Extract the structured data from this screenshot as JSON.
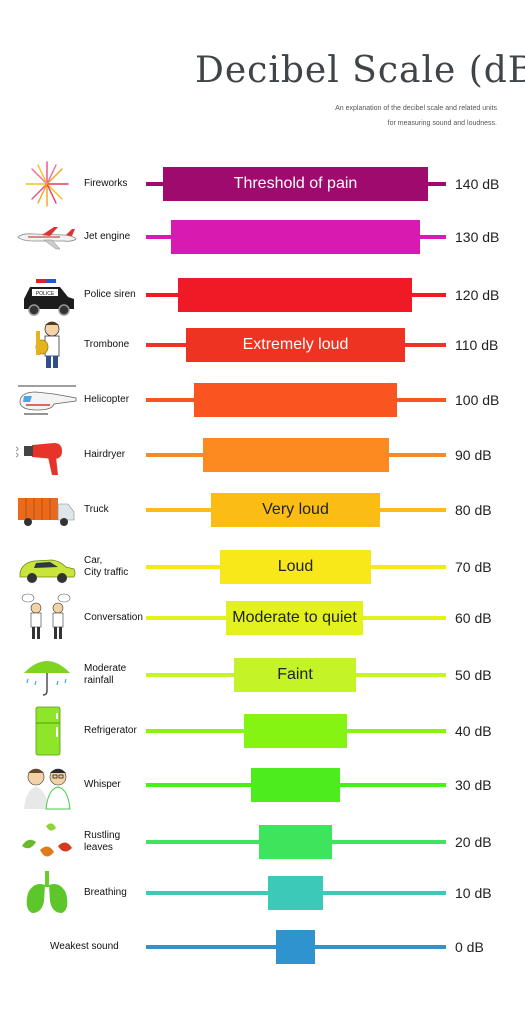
{
  "header": {
    "title": "Decibel Scale (dB)",
    "subtitle_line1": "An explanation of the decibel scale and related units",
    "subtitle_line2": "for measuring sound and loudness."
  },
  "rows": [
    {
      "source": "Fireworks",
      "level": "140 dB",
      "zone": "Threshold of pain",
      "color": "#9e0a6d",
      "text_color": "#ffffff",
      "icon": "fireworks-icon"
    },
    {
      "source": "Jet engine",
      "level": "130 dB",
      "zone": "",
      "color": "#d81ab0",
      "text_color": "#ffffff",
      "icon": "jet-icon"
    },
    {
      "source": "Police siren",
      "level": "120 dB",
      "zone": "",
      "color": "#ef1a26",
      "text_color": "#ffffff",
      "icon": "police-car-icon"
    },
    {
      "source": "Trombone",
      "level": "110 dB",
      "zone": "Extremely loud",
      "color": "#ee3322",
      "text_color": "#ffffff",
      "icon": "trombone-player-icon"
    },
    {
      "source": "Helicopter",
      "level": "100 dB",
      "zone": "",
      "color": "#fa5421",
      "text_color": "#ffffff",
      "icon": "helicopter-icon"
    },
    {
      "source": "Hairdryer",
      "level": "90 dB",
      "zone": "",
      "color": "#fd8a20",
      "text_color": "#ffffff",
      "icon": "hairdryer-icon"
    },
    {
      "source": "Truck",
      "level": "80 dB",
      "zone": "Very loud",
      "color": "#fbbd14",
      "text_color": "#222222",
      "icon": "truck-icon"
    },
    {
      "source": "Car,\nCity traffic",
      "level": "70 dB",
      "zone": "Loud",
      "color": "#f8e81a",
      "text_color": "#222222",
      "icon": "car-icon"
    },
    {
      "source": "Conversation",
      "level": "60 dB",
      "zone": "Moderate to quiet",
      "color": "#e3f21c",
      "text_color": "#222222",
      "icon": "conversation-icon"
    },
    {
      "source": "Moderate\nrainfall",
      "level": "50 dB",
      "zone": "Faint",
      "color": "#c4f428",
      "text_color": "#222222",
      "icon": "umbrella-rain-icon"
    },
    {
      "source": "Refrigerator",
      "level": "40 dB",
      "zone": "",
      "color": "#86f413",
      "text_color": "#222222",
      "icon": "refrigerator-icon"
    },
    {
      "source": "Whisper",
      "level": "30 dB",
      "zone": "",
      "color": "#4cec1d",
      "text_color": "#222222",
      "icon": "whisper-icon"
    },
    {
      "source": "Rustling\nleaves",
      "level": "20 dB",
      "zone": "",
      "color": "#3ee45c",
      "text_color": "#222222",
      "icon": "leaves-icon"
    },
    {
      "source": "Breathing",
      "level": "10 dB",
      "zone": "",
      "color": "#3cc9b8",
      "text_color": "#222222",
      "icon": "lungs-icon"
    },
    {
      "source": "Weakest sound",
      "level": "0 dB",
      "zone": "",
      "color": "#2f93d0",
      "text_color": "#222222",
      "icon": "weakest-sound"
    }
  ]
}
